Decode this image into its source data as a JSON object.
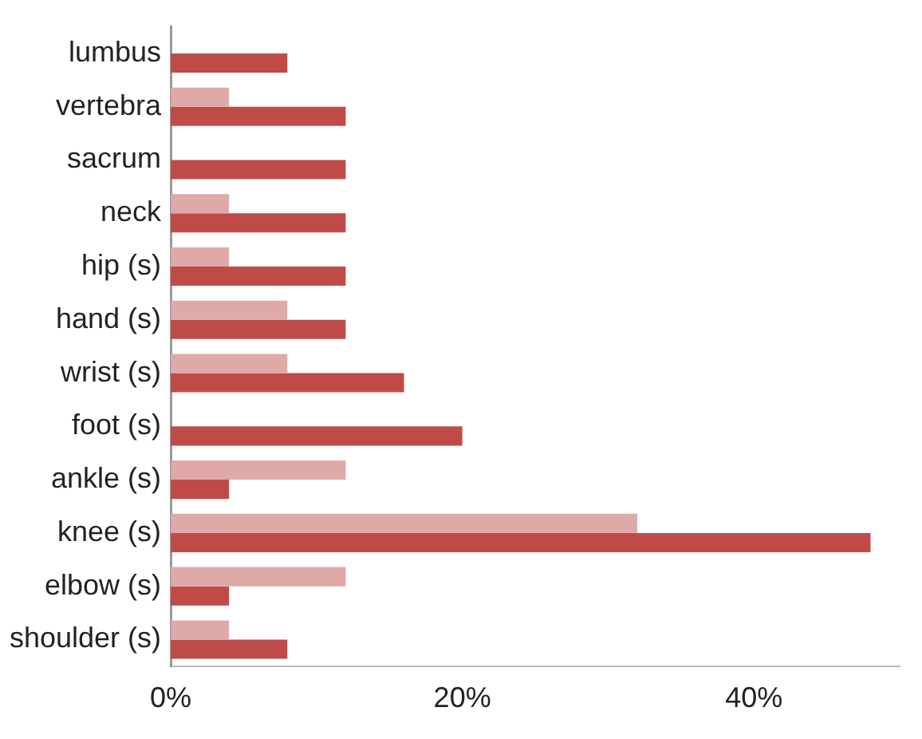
{
  "chart_data": {
    "type": "bar",
    "orientation": "horizontal",
    "categories": [
      "lumbus",
      "vertebra",
      "sacrum",
      "neck",
      "hip (s)",
      "hand (s)",
      "wrist (s)",
      "foot (s)",
      "ankle (s)",
      "knee (s)",
      "elbow (s)",
      "shoulder (s)"
    ],
    "series": [
      {
        "color": "#dfa9a8",
        "values": [
          0,
          4,
          0,
          4,
          4,
          8,
          8,
          0,
          12,
          32,
          12,
          4
        ]
      },
      {
        "color": "#bf4b49",
        "values": [
          8,
          12,
          12,
          12,
          12,
          12,
          16,
          20,
          4,
          48,
          4,
          8
        ]
      }
    ],
    "xlim": [
      0,
      50
    ],
    "xticks": [
      {
        "value": 0,
        "label": "0%"
      },
      {
        "value": 20,
        "label": "20%"
      },
      {
        "value": 40,
        "label": "40%"
      }
    ],
    "grid": false,
    "legend": false
  }
}
